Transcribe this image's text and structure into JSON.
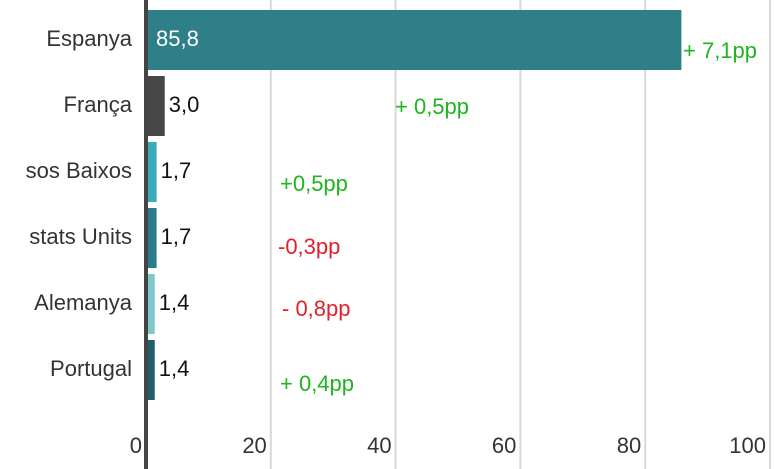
{
  "chart_data": {
    "type": "hbar",
    "categories": [
      "Espanya",
      "França",
      "sos Baixos",
      "stats Units",
      "Alemanya",
      "Portugal"
    ],
    "values": [
      85.8,
      3.0,
      1.7,
      1.7,
      1.4,
      1.4
    ],
    "value_labels": [
      "85,8",
      "3,0",
      "1,7",
      "1,7",
      "1,4",
      "1,4"
    ],
    "colors": [
      "#2e7f88",
      "#474747",
      "#3aa9b8",
      "#2a7c8c",
      "#7fc8cf",
      "#1f5d6d"
    ],
    "annotations": [
      {
        "text": "+ 7,1pp",
        "color": "#1fb51f"
      },
      {
        "text": "+ 0,5pp",
        "color": "#1fb51f"
      },
      {
        "text": "+0,5pp",
        "color": "#1fb51f"
      },
      {
        "text": "-0,3pp",
        "color": "#e3212b"
      },
      {
        "text": "- 0,8pp",
        "color": "#e3212b"
      },
      {
        "text": "+ 0,4pp",
        "color": "#1fb51f"
      }
    ],
    "xlim": [
      0,
      100
    ],
    "xticks": [
      0,
      20,
      40,
      60,
      80,
      100
    ],
    "grid": true
  }
}
